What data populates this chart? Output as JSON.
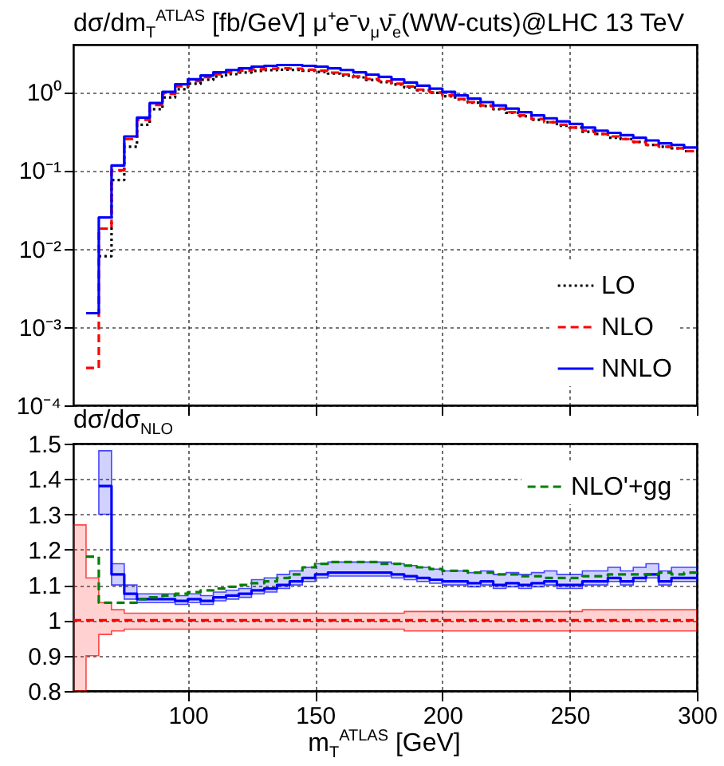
{
  "chart_data": [
    {
      "type": "step",
      "title": "dσ/dm$_{T}$$^{ATLAS}$ [fb/GeV] μ⁺e⁻ν$_{μ}$ν̄$_{e}$(WW-cuts)@LHC 13 TeV",
      "log": "y",
      "xlim": [
        55,
        300
      ],
      "xticks": [
        100,
        150,
        200,
        250,
        300
      ],
      "ylim": [
        0.0001,
        4
      ],
      "yticks": [
        {
          "value": 0.0001,
          "label": "10⁻⁴"
        },
        {
          "value": 0.001,
          "label": "10⁻³"
        },
        {
          "value": 0.01,
          "label": "10⁻²"
        },
        {
          "value": 0.1,
          "label": "10⁻¹"
        },
        {
          "value": 1,
          "label": "10⁰"
        }
      ],
      "tick_labels": "y",
      "grid": true,
      "legend": "bottom right",
      "series": [
        {
          "name": "LO",
          "color": "#000000",
          "line_style": "dotted",
          "x": [
            65,
            70,
            75,
            80,
            85,
            90,
            95,
            100,
            105,
            110,
            115,
            120,
            125,
            130,
            135,
            140,
            145,
            150,
            155,
            160,
            165,
            170,
            175,
            180,
            185,
            190,
            195,
            200,
            205,
            210,
            215,
            220,
            225,
            230,
            235,
            240,
            245,
            250,
            255,
            260,
            265,
            270,
            275,
            280,
            285,
            290,
            295,
            300
          ],
          "values": [
            0.008,
            0.075,
            0.2,
            0.38,
            0.6,
            0.85,
            1.08,
            1.27,
            1.43,
            1.57,
            1.68,
            1.77,
            1.85,
            1.89,
            1.92,
            1.91,
            1.86,
            1.8,
            1.71,
            1.62,
            1.53,
            1.42,
            1.33,
            1.24,
            1.14,
            1.05,
            0.97,
            0.88,
            0.8,
            0.73,
            0.66,
            0.6,
            0.54,
            0.49,
            0.44,
            0.41,
            0.37,
            0.35,
            0.31,
            0.29,
            0.26,
            0.25,
            0.23,
            0.21,
            0.2,
            0.19,
            0.175,
            0.175
          ]
        },
        {
          "name": "NLO",
          "color": "#ff0000",
          "line_style": "dashed",
          "x": [
            60,
            65,
            70,
            75,
            80,
            85,
            90,
            95,
            100,
            105,
            110,
            115,
            120,
            125,
            130,
            135,
            140,
            145,
            150,
            155,
            160,
            165,
            170,
            175,
            180,
            185,
            190,
            195,
            200,
            205,
            210,
            215,
            220,
            225,
            230,
            235,
            240,
            245,
            250,
            255,
            260,
            265,
            270,
            275,
            280,
            285,
            290,
            295,
            300
          ],
          "values": [
            0.0003,
            0.018,
            0.1,
            0.25,
            0.44,
            0.68,
            0.94,
            1.18,
            1.37,
            1.54,
            1.67,
            1.78,
            1.86,
            1.94,
            1.97,
            2.0,
            1.98,
            1.92,
            1.86,
            1.76,
            1.67,
            1.57,
            1.46,
            1.37,
            1.27,
            1.17,
            1.07,
            0.99,
            0.9,
            0.81,
            0.74,
            0.67,
            0.61,
            0.55,
            0.5,
            0.45,
            0.41,
            0.38,
            0.35,
            0.32,
            0.29,
            0.27,
            0.25,
            0.23,
            0.21,
            0.2,
            0.19,
            0.175,
            0.175
          ]
        },
        {
          "name": "NNLO",
          "color": "#0000ff",
          "line_style": "solid",
          "x": [
            60,
            65,
            70,
            75,
            80,
            85,
            90,
            95,
            100,
            105,
            110,
            115,
            120,
            125,
            130,
            135,
            140,
            145,
            150,
            155,
            160,
            165,
            170,
            175,
            180,
            185,
            190,
            195,
            200,
            205,
            210,
            215,
            220,
            225,
            230,
            235,
            240,
            245,
            250,
            255,
            260,
            265,
            270,
            275,
            280,
            285,
            290,
            295,
            300
          ],
          "values": [
            0.0015,
            0.025,
            0.115,
            0.27,
            0.47,
            0.72,
            1.0,
            1.25,
            1.45,
            1.62,
            1.78,
            1.9,
            2.0,
            2.1,
            2.15,
            2.2,
            2.2,
            2.15,
            2.1,
            2.0,
            1.9,
            1.78,
            1.66,
            1.55,
            1.44,
            1.32,
            1.2,
            1.1,
            1.0,
            0.9,
            0.82,
            0.74,
            0.67,
            0.61,
            0.55,
            0.5,
            0.46,
            0.42,
            0.39,
            0.35,
            0.32,
            0.3,
            0.28,
            0.26,
            0.24,
            0.22,
            0.21,
            0.195,
            0.195
          ]
        }
      ]
    },
    {
      "type": "step",
      "ylabel": "dσ/dσ$_{NLO}$",
      "xlabel": "m$_{T}$$^{ATLAS}$ [GeV]",
      "xlim": [
        55,
        300
      ],
      "xticks": [
        100,
        150,
        200,
        250,
        300
      ],
      "ylim": [
        0.8,
        1.5
      ],
      "yticks": [
        0.8,
        0.9,
        1,
        1.1,
        1.2,
        1.3,
        1.4,
        1.5
      ],
      "grid": true,
      "legend": "top right",
      "series": [
        {
          "color": "#ff0000",
          "line_style": "dashed",
          "x": [
            55,
            60,
            65,
            70,
            75,
            80,
            85,
            90,
            95,
            100,
            105,
            110,
            115,
            120,
            125,
            130,
            135,
            140,
            145,
            150,
            155,
            160,
            165,
            170,
            175,
            180,
            185,
            190,
            195,
            200,
            205,
            210,
            215,
            220,
            225,
            230,
            235,
            240,
            245,
            250,
            255,
            260,
            265,
            270,
            275,
            280,
            285,
            290,
            295,
            300
          ],
          "values": [
            1,
            1,
            1,
            1,
            1,
            1,
            1,
            1,
            1,
            1,
            1,
            1,
            1,
            1,
            1,
            1,
            1,
            1,
            1,
            1,
            1,
            1,
            1,
            1,
            1,
            1,
            1,
            1,
            1,
            1,
            1,
            1,
            1,
            1,
            1,
            1,
            1,
            1,
            1,
            1,
            1,
            1,
            1,
            1,
            1,
            1,
            1,
            1,
            1,
            1
          ],
          "lower": [
            0.8,
            0.9,
            0.96,
            0.97,
            0.975,
            0.975,
            0.975,
            0.975,
            0.975,
            0.975,
            0.975,
            0.975,
            0.975,
            0.975,
            0.975,
            0.975,
            0.975,
            0.975,
            0.975,
            0.975,
            0.975,
            0.975,
            0.975,
            0.975,
            0.975,
            0.975,
            0.97,
            0.97,
            0.97,
            0.97,
            0.97,
            0.97,
            0.97,
            0.97,
            0.97,
            0.97,
            0.97,
            0.97,
            0.97,
            0.97,
            0.97,
            0.97,
            0.97,
            0.97,
            0.97,
            0.97,
            0.97,
            0.97,
            0.97,
            0.97
          ],
          "upper": [
            1.27,
            1.12,
            1.05,
            1.03,
            1.02,
            1.02,
            1.02,
            1.02,
            1.02,
            1.02,
            1.02,
            1.02,
            1.02,
            1.02,
            1.02,
            1.02,
            1.02,
            1.02,
            1.02,
            1.02,
            1.02,
            1.02,
            1.02,
            1.02,
            1.02,
            1.02,
            1.025,
            1.025,
            1.025,
            1.025,
            1.025,
            1.025,
            1.025,
            1.025,
            1.025,
            1.025,
            1.025,
            1.025,
            1.025,
            1.025,
            1.03,
            1.03,
            1.03,
            1.03,
            1.03,
            1.03,
            1.03,
            1.03,
            1.03,
            1.03
          ]
        },
        {
          "color": "#0000ff",
          "line_style": "solid",
          "x": [
            65,
            70,
            75,
            80,
            85,
            90,
            95,
            100,
            105,
            110,
            115,
            120,
            125,
            130,
            135,
            140,
            145,
            150,
            155,
            160,
            165,
            170,
            175,
            180,
            185,
            190,
            195,
            200,
            205,
            210,
            215,
            220,
            225,
            230,
            235,
            240,
            245,
            250,
            255,
            260,
            265,
            270,
            275,
            280,
            285,
            290,
            295,
            300
          ],
          "values": [
            1.38,
            1.13,
            1.075,
            1.06,
            1.06,
            1.06,
            1.055,
            1.06,
            1.055,
            1.065,
            1.07,
            1.075,
            1.085,
            1.09,
            1.1,
            1.11,
            1.12,
            1.13,
            1.135,
            1.135,
            1.135,
            1.135,
            1.135,
            1.13,
            1.125,
            1.12,
            1.115,
            1.11,
            1.11,
            1.105,
            1.11,
            1.1,
            1.105,
            1.1,
            1.105,
            1.11,
            1.1,
            1.1,
            1.11,
            1.11,
            1.12,
            1.11,
            1.12,
            1.13,
            1.11,
            1.12,
            1.12,
            1.12
          ],
          "lower": [
            1.3,
            1.1,
            1.06,
            1.05,
            1.05,
            1.05,
            1.045,
            1.05,
            1.045,
            1.055,
            1.06,
            1.065,
            1.075,
            1.08,
            1.09,
            1.1,
            1.11,
            1.12,
            1.125,
            1.125,
            1.125,
            1.125,
            1.125,
            1.12,
            1.115,
            1.11,
            1.105,
            1.1,
            1.1,
            1.095,
            1.1,
            1.09,
            1.095,
            1.09,
            1.095,
            1.1,
            1.09,
            1.09,
            1.1,
            1.1,
            1.11,
            1.1,
            1.11,
            1.12,
            1.1,
            1.11,
            1.11,
            1.11
          ],
          "upper": [
            1.48,
            1.16,
            1.1,
            1.075,
            1.075,
            1.075,
            1.07,
            1.075,
            1.07,
            1.08,
            1.085,
            1.09,
            1.115,
            1.12,
            1.13,
            1.14,
            1.15,
            1.16,
            1.165,
            1.165,
            1.165,
            1.165,
            1.165,
            1.16,
            1.155,
            1.15,
            1.145,
            1.14,
            1.14,
            1.135,
            1.14,
            1.13,
            1.135,
            1.13,
            1.135,
            1.14,
            1.13,
            1.13,
            1.14,
            1.14,
            1.15,
            1.14,
            1.15,
            1.16,
            1.14,
            1.15,
            1.15,
            1.15
          ]
        },
        {
          "name": "NLO'+gg",
          "color": "#008000",
          "line_style": "dashed",
          "x": [
            60,
            65,
            70,
            75,
            80,
            85,
            90,
            95,
            100,
            105,
            110,
            115,
            120,
            125,
            130,
            135,
            140,
            145,
            150,
            155,
            160,
            165,
            170,
            175,
            180,
            185,
            190,
            195,
            200,
            205,
            210,
            215,
            220,
            225,
            230,
            235,
            240,
            245,
            250,
            255,
            260,
            265,
            270,
            275,
            280,
            285,
            290,
            295,
            300
          ],
          "values": [
            1.18,
            1.05,
            1.05,
            1.05,
            1.06,
            1.065,
            1.07,
            1.075,
            1.08,
            1.085,
            1.09,
            1.095,
            1.1,
            1.105,
            1.11,
            1.12,
            1.13,
            1.15,
            1.16,
            1.165,
            1.165,
            1.165,
            1.165,
            1.16,
            1.16,
            1.155,
            1.15,
            1.145,
            1.14,
            1.14,
            1.135,
            1.135,
            1.13,
            1.13,
            1.125,
            1.125,
            1.12,
            1.12,
            1.12,
            1.125,
            1.125,
            1.13,
            1.13,
            1.13,
            1.13,
            1.135,
            1.13,
            1.135,
            1.135
          ]
        }
      ]
    }
  ]
}
